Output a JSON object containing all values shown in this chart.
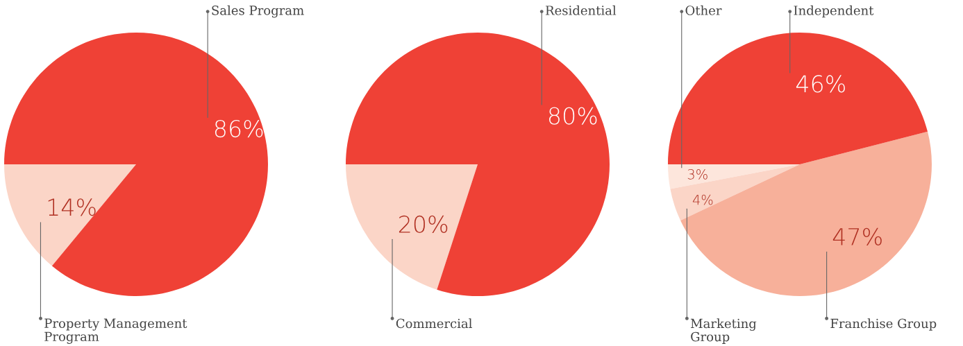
{
  "chart_data": [
    {
      "type": "pie",
      "categories": [
        "Property Management\nProgram",
        "Sales Program"
      ],
      "values": [
        14,
        86
      ],
      "value_labels": [
        "14%",
        "86%"
      ],
      "colors": [
        "#fbd5c7",
        "#ef4136"
      ]
    },
    {
      "type": "pie",
      "categories": [
        "Commercial",
        "Residential"
      ],
      "values": [
        20,
        80
      ],
      "value_labels": [
        "20%",
        "80%"
      ],
      "colors": [
        "#fbd5c7",
        "#ef4136"
      ]
    },
    {
      "type": "pie",
      "categories": [
        "Other",
        "Marketing\nGroup",
        "Franchise Group",
        "Independent"
      ],
      "values": [
        3,
        4,
        47,
        46
      ],
      "value_labels": [
        "3%",
        "4%",
        "47%",
        "46%"
      ],
      "colors": [
        "#fde6dc",
        "#fbd5c7",
        "#f7b09a",
        "#ef4136"
      ]
    }
  ]
}
